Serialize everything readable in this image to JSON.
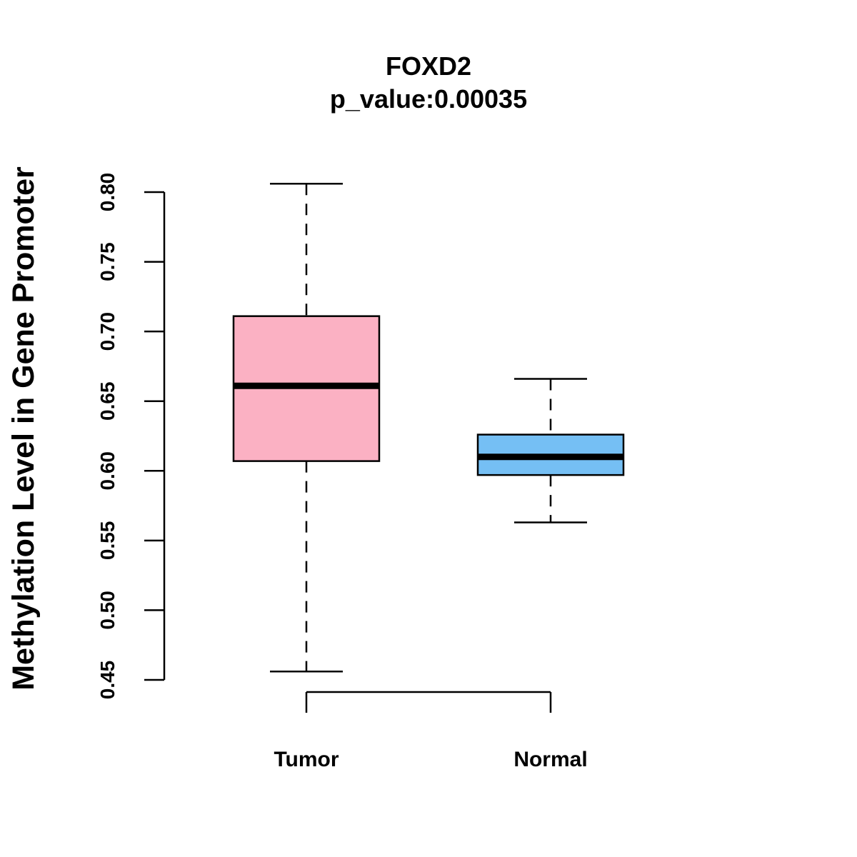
{
  "chart_data": {
    "type": "boxplot",
    "title": "FOXD2",
    "subtitle": "p_value:0.00035",
    "xlabel": "",
    "ylabel": "Methylation Level in Gene Promoter",
    "ylim": [
      0.45,
      0.8
    ],
    "yticks": [
      "0.45",
      "0.50",
      "0.55",
      "0.60",
      "0.65",
      "0.70",
      "0.75",
      "0.80"
    ],
    "yticks_values": [
      0.45,
      0.5,
      0.55,
      0.6,
      0.65,
      0.7,
      0.75,
      0.8
    ],
    "grid": false,
    "categories": [
      "Tumor",
      "Normal"
    ],
    "boxes": [
      {
        "name": "Tumor",
        "whisker_low": 0.456,
        "q1": 0.607,
        "median": 0.661,
        "q3": 0.711,
        "whisker_high": 0.806,
        "color": "#FBB1C3"
      },
      {
        "name": "Normal",
        "whisker_low": 0.563,
        "q1": 0.597,
        "median": 0.61,
        "q3": 0.626,
        "whisker_high": 0.666,
        "color": "#75BFF4"
      }
    ],
    "comparison_bracket": [
      "Tumor",
      "Normal"
    ]
  }
}
